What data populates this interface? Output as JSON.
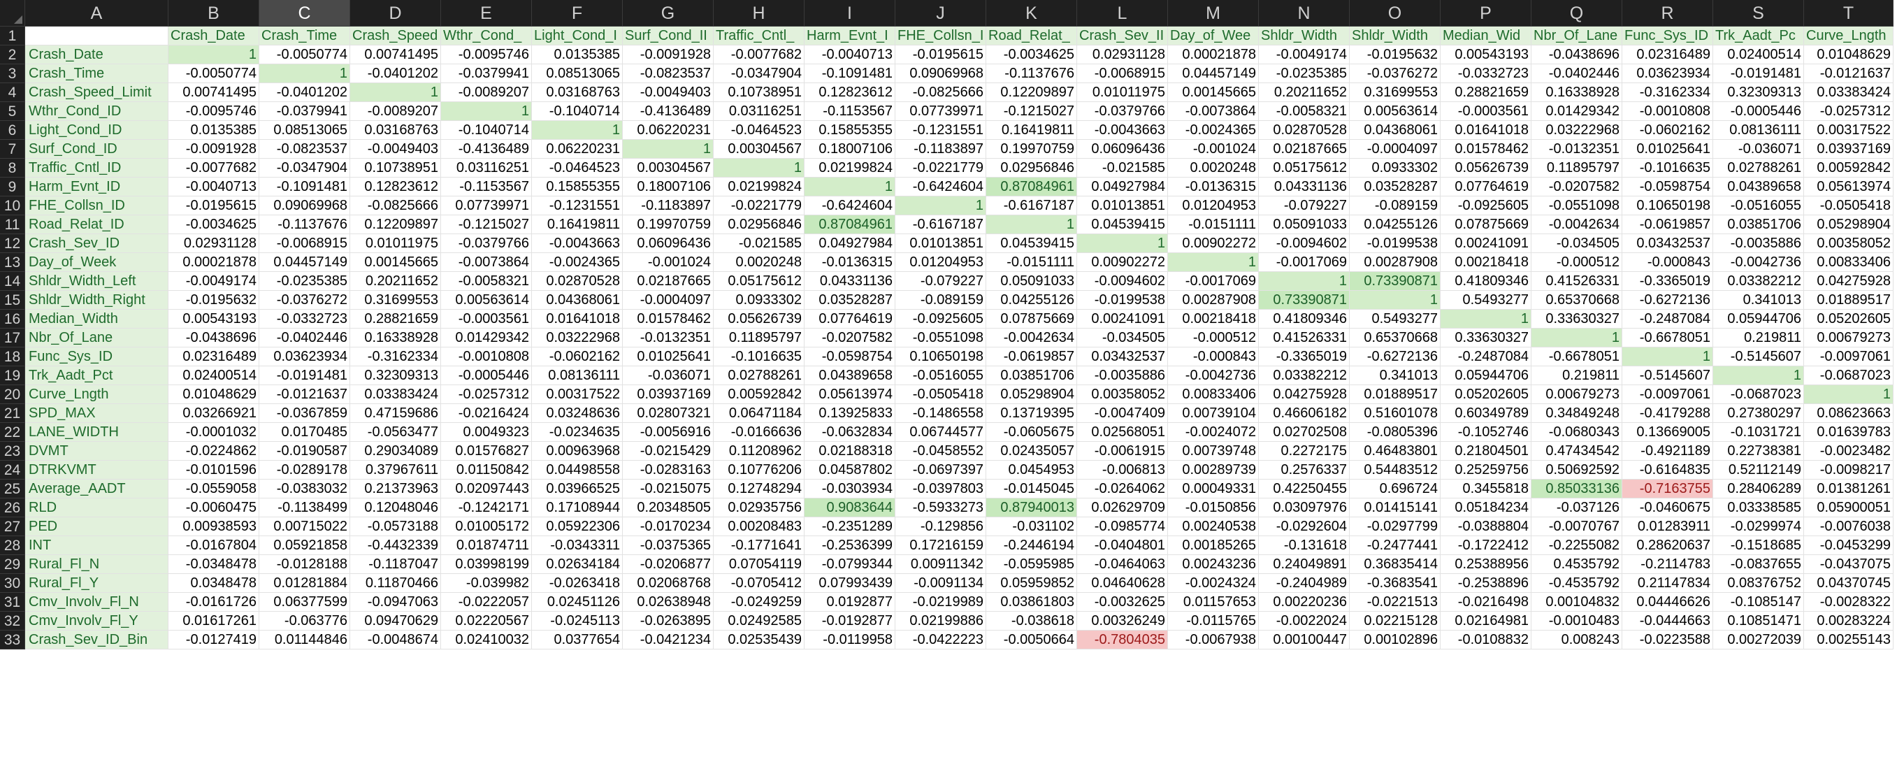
{
  "sheet": {
    "column_letters": [
      "A",
      "B",
      "C",
      "D",
      "E",
      "F",
      "G",
      "H",
      "I",
      "J",
      "K",
      "L",
      "M",
      "N",
      "O",
      "P",
      "Q",
      "R",
      "S",
      "T"
    ],
    "selected_column": "C",
    "header_row": [
      "",
      "Crash_Date",
      "Crash_Time",
      "Crash_Speed",
      "Wthr_Cond_",
      "Light_Cond_I",
      "Surf_Cond_II",
      "Traffic_Cntl_",
      "Harm_Evnt_I",
      "FHE_Collsn_I",
      "Road_Relat_",
      "Crash_Sev_II",
      "Day_of_Wee",
      "Shldr_Width",
      "Shldr_Width",
      "Median_Wid",
      "Nbr_Of_Lane",
      "Func_Sys_ID",
      "Trk_Aadt_Pc",
      "Curve_Lngth"
    ],
    "rows": [
      {
        "label": "Crash_Date",
        "values": [
          "1",
          "-0.0050774",
          "0.00741495",
          "-0.0095746",
          "0.0135385",
          "-0.0091928",
          "-0.0077682",
          "-0.0040713",
          "-0.0195615",
          "-0.0034625",
          "0.02931128",
          "0.00021878",
          "-0.0049174",
          "-0.0195632",
          "0.00543193",
          "-0.0438696",
          "0.02316489",
          "0.02400514",
          "0.01048629"
        ]
      },
      {
        "label": "Crash_Time",
        "values": [
          "-0.0050774",
          "1",
          "-0.0401202",
          "-0.0379941",
          "0.08513065",
          "-0.0823537",
          "-0.0347904",
          "-0.1091481",
          "0.09069968",
          "-0.1137676",
          "-0.0068915",
          "0.04457149",
          "-0.0235385",
          "-0.0376272",
          "-0.0332723",
          "-0.0402446",
          "0.03623934",
          "-0.0191481",
          "-0.0121637"
        ]
      },
      {
        "label": "Crash_Speed_Limit",
        "values": [
          "0.00741495",
          "-0.0401202",
          "1",
          "-0.0089207",
          "0.03168763",
          "-0.0049403",
          "0.10738951",
          "0.12823612",
          "-0.0825666",
          "0.12209897",
          "0.01011975",
          "0.00145665",
          "0.20211652",
          "0.31699553",
          "0.28821659",
          "0.16338928",
          "-0.3162334",
          "0.32309313",
          "0.03383424"
        ]
      },
      {
        "label": "Wthr_Cond_ID",
        "values": [
          "-0.0095746",
          "-0.0379941",
          "-0.0089207",
          "1",
          "-0.1040714",
          "-0.4136489",
          "0.03116251",
          "-0.1153567",
          "0.07739971",
          "-0.1215027",
          "-0.0379766",
          "-0.0073864",
          "-0.0058321",
          "0.00563614",
          "-0.0003561",
          "0.01429342",
          "-0.0010808",
          "-0.0005446",
          "-0.0257312"
        ]
      },
      {
        "label": "Light_Cond_ID",
        "values": [
          "0.0135385",
          "0.08513065",
          "0.03168763",
          "-0.1040714",
          "1",
          "0.06220231",
          "-0.0464523",
          "0.15855355",
          "-0.1231551",
          "0.16419811",
          "-0.0043663",
          "-0.0024365",
          "0.02870528",
          "0.04368061",
          "0.01641018",
          "0.03222968",
          "-0.0602162",
          "0.08136111",
          "0.00317522"
        ]
      },
      {
        "label": "Surf_Cond_ID",
        "values": [
          "-0.0091928",
          "-0.0823537",
          "-0.0049403",
          "-0.4136489",
          "0.06220231",
          "1",
          "0.00304567",
          "0.18007106",
          "-0.1183897",
          "0.19970759",
          "0.06096436",
          "-0.001024",
          "0.02187665",
          "-0.0004097",
          "0.01578462",
          "-0.0132351",
          "0.01025641",
          "-0.036071",
          "0.03937169"
        ]
      },
      {
        "label": "Traffic_Cntl_ID",
        "values": [
          "-0.0077682",
          "-0.0347904",
          "0.10738951",
          "0.03116251",
          "-0.0464523",
          "0.00304567",
          "1",
          "0.02199824",
          "-0.0221779",
          "0.02956846",
          "-0.021585",
          "0.0020248",
          "0.05175612",
          "0.0933302",
          "0.05626739",
          "0.11895797",
          "-0.1016635",
          "0.02788261",
          "0.00592842"
        ]
      },
      {
        "label": "Harm_Evnt_ID",
        "values": [
          "-0.0040713",
          "-0.1091481",
          "0.12823612",
          "-0.1153567",
          "0.15855355",
          "0.18007106",
          "0.02199824",
          "1",
          "-0.6424604",
          "0.87084961",
          "0.04927984",
          "-0.0136315",
          "0.04331136",
          "0.03528287",
          "0.07764619",
          "-0.0207582",
          "-0.0598754",
          "0.04389658",
          "0.05613974"
        ]
      },
      {
        "label": "FHE_Collsn_ID",
        "values": [
          "-0.0195615",
          "0.09069968",
          "-0.0825666",
          "0.07739971",
          "-0.1231551",
          "-0.1183897",
          "-0.0221779",
          "-0.6424604",
          "1",
          "-0.6167187",
          "0.01013851",
          "0.01204953",
          "-0.079227",
          "-0.089159",
          "-0.0925605",
          "-0.0551098",
          "0.10650198",
          "-0.0516055",
          "-0.0505418"
        ]
      },
      {
        "label": "Road_Relat_ID",
        "values": [
          "-0.0034625",
          "-0.1137676",
          "0.12209897",
          "-0.1215027",
          "0.16419811",
          "0.19970759",
          "0.02956846",
          "0.87084961",
          "-0.6167187",
          "1",
          "0.04539415",
          "-0.0151111",
          "0.05091033",
          "0.04255126",
          "0.07875669",
          "-0.0042634",
          "-0.0619857",
          "0.03851706",
          "0.05298904"
        ]
      },
      {
        "label": "Crash_Sev_ID",
        "values": [
          "0.02931128",
          "-0.0068915",
          "0.01011975",
          "-0.0379766",
          "-0.0043663",
          "0.06096436",
          "-0.021585",
          "0.04927984",
          "0.01013851",
          "0.04539415",
          "1",
          "0.00902272",
          "-0.0094602",
          "-0.0199538",
          "0.00241091",
          "-0.034505",
          "0.03432537",
          "-0.0035886",
          "0.00358052"
        ]
      },
      {
        "label": "Day_of_Week",
        "values": [
          "0.00021878",
          "0.04457149",
          "0.00145665",
          "-0.0073864",
          "-0.0024365",
          "-0.001024",
          "0.0020248",
          "-0.0136315",
          "0.01204953",
          "-0.0151111",
          "0.00902272",
          "1",
          "-0.0017069",
          "0.00287908",
          "0.00218418",
          "-0.000512",
          "-0.000843",
          "-0.0042736",
          "0.00833406"
        ]
      },
      {
        "label": "Shldr_Width_Left",
        "values": [
          "-0.0049174",
          "-0.0235385",
          "0.20211652",
          "-0.0058321",
          "0.02870528",
          "0.02187665",
          "0.05175612",
          "0.04331136",
          "-0.079227",
          "0.05091033",
          "-0.0094602",
          "-0.0017069",
          "1",
          "0.73390871",
          "0.41809346",
          "0.41526331",
          "-0.3365019",
          "0.03382212",
          "0.04275928"
        ]
      },
      {
        "label": "Shldr_Width_Right",
        "values": [
          "-0.0195632",
          "-0.0376272",
          "0.31699553",
          "0.00563614",
          "0.04368061",
          "-0.0004097",
          "0.0933302",
          "0.03528287",
          "-0.089159",
          "0.04255126",
          "-0.0199538",
          "0.00287908",
          "0.73390871",
          "1",
          "0.5493277",
          "0.65370668",
          "-0.6272136",
          "0.341013",
          "0.01889517"
        ]
      },
      {
        "label": "Median_Width",
        "values": [
          "0.00543193",
          "-0.0332723",
          "0.28821659",
          "-0.0003561",
          "0.01641018",
          "0.01578462",
          "0.05626739",
          "0.07764619",
          "-0.0925605",
          "0.07875669",
          "0.00241091",
          "0.00218418",
          "0.41809346",
          "0.5493277",
          "1",
          "0.33630327",
          "-0.2487084",
          "0.05944706",
          "0.05202605"
        ]
      },
      {
        "label": "Nbr_Of_Lane",
        "values": [
          "-0.0438696",
          "-0.0402446",
          "0.16338928",
          "0.01429342",
          "0.03222968",
          "-0.0132351",
          "0.11895797",
          "-0.0207582",
          "-0.0551098",
          "-0.0042634",
          "-0.034505",
          "-0.000512",
          "0.41526331",
          "0.65370668",
          "0.33630327",
          "1",
          "-0.6678051",
          "0.219811",
          "0.00679273"
        ]
      },
      {
        "label": "Func_Sys_ID",
        "values": [
          "0.02316489",
          "0.03623934",
          "-0.3162334",
          "-0.0010808",
          "-0.0602162",
          "0.01025641",
          "-0.1016635",
          "-0.0598754",
          "0.10650198",
          "-0.0619857",
          "0.03432537",
          "-0.000843",
          "-0.3365019",
          "-0.6272136",
          "-0.2487084",
          "-0.6678051",
          "1",
          "-0.5145607",
          "-0.0097061"
        ]
      },
      {
        "label": "Trk_Aadt_Pct",
        "values": [
          "0.02400514",
          "-0.0191481",
          "0.32309313",
          "-0.0005446",
          "0.08136111",
          "-0.036071",
          "0.02788261",
          "0.04389658",
          "-0.0516055",
          "0.03851706",
          "-0.0035886",
          "-0.0042736",
          "0.03382212",
          "0.341013",
          "0.05944706",
          "0.219811",
          "-0.5145607",
          "1",
          "-0.0687023"
        ]
      },
      {
        "label": "Curve_Lngth",
        "values": [
          "0.01048629",
          "-0.0121637",
          "0.03383424",
          "-0.0257312",
          "0.00317522",
          "0.03937169",
          "0.00592842",
          "0.05613974",
          "-0.0505418",
          "0.05298904",
          "0.00358052",
          "0.00833406",
          "0.04275928",
          "0.01889517",
          "0.05202605",
          "0.00679273",
          "-0.0097061",
          "-0.0687023",
          "1"
        ]
      },
      {
        "label": "SPD_MAX",
        "values": [
          "0.03266921",
          "-0.0367859",
          "0.47159686",
          "-0.0216424",
          "0.03248636",
          "0.02807321",
          "0.06471184",
          "0.13925833",
          "-0.1486558",
          "0.13719395",
          "-0.0047409",
          "0.00739104",
          "0.46606182",
          "0.51601078",
          "0.60349789",
          "0.34849248",
          "-0.4179288",
          "0.27380297",
          "0.08623663"
        ]
      },
      {
        "label": "LANE_WIDTH",
        "values": [
          "-0.0001032",
          "0.0170485",
          "-0.0563477",
          "0.0049323",
          "-0.0234635",
          "-0.0056916",
          "-0.0166636",
          "-0.0632834",
          "0.06744577",
          "-0.0605675",
          "0.02568051",
          "-0.0024072",
          "0.02702508",
          "-0.0805396",
          "-0.1052746",
          "-0.0680343",
          "0.13669005",
          "-0.1031721",
          "0.01639783"
        ]
      },
      {
        "label": "DVMT",
        "values": [
          "-0.0224862",
          "-0.0190587",
          "0.29034089",
          "0.01576827",
          "0.00963968",
          "-0.0215429",
          "0.11208962",
          "0.02188318",
          "-0.0458552",
          "0.02435057",
          "-0.0061915",
          "0.00739748",
          "0.2272175",
          "0.46483801",
          "0.21804501",
          "0.47434542",
          "-0.4921189",
          "0.22738381",
          "-0.0023482"
        ]
      },
      {
        "label": "DTRKVMT",
        "values": [
          "-0.0101596",
          "-0.0289178",
          "0.37967611",
          "0.01150842",
          "0.04498558",
          "-0.0283163",
          "0.10776206",
          "0.04587802",
          "-0.0697397",
          "0.0454953",
          "-0.006813",
          "0.00289739",
          "0.2576337",
          "0.54483512",
          "0.25259756",
          "0.50692592",
          "-0.6164835",
          "0.52112149",
          "-0.0098217"
        ]
      },
      {
        "label": "Average_AADT",
        "values": [
          "-0.0559058",
          "-0.0383032",
          "0.21373963",
          "0.02097443",
          "0.03966525",
          "-0.0215075",
          "0.12748294",
          "-0.0303934",
          "-0.0397803",
          "-0.0145045",
          "-0.0264062",
          "0.00049331",
          "0.42250455",
          "0.696724",
          "0.3455818",
          "0.85033136",
          "-0.7163755",
          "0.28406289",
          "0.01381261"
        ]
      },
      {
        "label": "RLD",
        "values": [
          "-0.0060475",
          "-0.1138499",
          "0.12048046",
          "-0.1242171",
          "0.17108944",
          "0.20348505",
          "0.02935756",
          "0.9083644",
          "-0.5933273",
          "0.87940013",
          "0.02629709",
          "-0.0150856",
          "0.03097976",
          "0.01415141",
          "0.05184234",
          "-0.037126",
          "-0.0460675",
          "0.03338585",
          "0.05900051"
        ]
      },
      {
        "label": "PED",
        "values": [
          "0.00938593",
          "0.00715022",
          "-0.0573188",
          "0.01005172",
          "0.05922306",
          "-0.0170234",
          "0.00208483",
          "-0.2351289",
          "-0.129856",
          "-0.031102",
          "-0.0985774",
          "0.00240538",
          "-0.0292604",
          "-0.0297799",
          "-0.0388804",
          "-0.0070767",
          "0.01283911",
          "-0.0299974",
          "-0.0076038"
        ]
      },
      {
        "label": "INT",
        "values": [
          "-0.0167804",
          "0.05921858",
          "-0.4432339",
          "0.01874711",
          "-0.0343311",
          "-0.0375365",
          "-0.1771641",
          "-0.2536399",
          "0.17216159",
          "-0.2446194",
          "-0.0404801",
          "0.00185265",
          "-0.131618",
          "-0.2477441",
          "-0.1722412",
          "-0.2255082",
          "0.28620637",
          "-0.1518685",
          "-0.0453299"
        ]
      },
      {
        "label": "Rural_Fl_N",
        "values": [
          "-0.0348478",
          "-0.0128188",
          "-0.1187047",
          "0.03998199",
          "0.02634184",
          "-0.0206877",
          "0.07054119",
          "-0.0799344",
          "0.00911342",
          "-0.0595985",
          "-0.0464063",
          "0.00243236",
          "0.24049891",
          "0.36835414",
          "0.25388956",
          "0.4535792",
          "-0.2114783",
          "-0.0837655",
          "-0.0437075"
        ]
      },
      {
        "label": "Rural_Fl_Y",
        "values": [
          "0.0348478",
          "0.01281884",
          "0.11870466",
          "-0.039982",
          "-0.0263418",
          "0.02068768",
          "-0.0705412",
          "0.07993439",
          "-0.0091134",
          "0.05959852",
          "0.04640628",
          "-0.0024324",
          "-0.2404989",
          "-0.3683541",
          "-0.2538896",
          "-0.4535792",
          "0.21147834",
          "0.08376752",
          "0.04370745"
        ]
      },
      {
        "label": "Cmv_Involv_Fl_N",
        "values": [
          "-0.0161726",
          "0.06377599",
          "-0.0947063",
          "-0.0222057",
          "0.02451126",
          "0.02638948",
          "-0.0249259",
          "0.0192877",
          "-0.0219989",
          "0.03861803",
          "-0.0032625",
          "0.01157653",
          "0.00220236",
          "-0.0221513",
          "-0.0216498",
          "0.00104832",
          "0.04446626",
          "-0.1085147",
          "-0.0028322"
        ]
      },
      {
        "label": "Cmv_Involv_Fl_Y",
        "values": [
          "0.01617261",
          "-0.063776",
          "0.09470629",
          "0.02220567",
          "-0.0245113",
          "-0.0263895",
          "0.02492585",
          "-0.0192877",
          "0.02199886",
          "-0.038618",
          "0.00326249",
          "-0.0115765",
          "-0.0022024",
          "0.02215128",
          "0.02164981",
          "-0.0010483",
          "-0.0444663",
          "0.10851471",
          "0.00283224"
        ]
      },
      {
        "label": "Crash_Sev_ID_Bin",
        "values": [
          "-0.0127419",
          "0.01144846",
          "-0.0048674",
          "0.02410032",
          "0.0377654",
          "-0.0421234",
          "0.02535439",
          "-0.0119958",
          "-0.0422223",
          "-0.0050664",
          "-0.7804035",
          "-0.0067938",
          "0.00100447",
          "0.00102896",
          "-0.0108832",
          "0.008243",
          "-0.0223588",
          "0.00272039",
          "0.00255143"
        ]
      }
    ],
    "highlight_colors": {
      "positive_fill": "#c7e9bd",
      "negative_fill": "#f6c6c6",
      "label_fill": "#e2f1dc",
      "header_bar": "#1f1f1f"
    }
  }
}
